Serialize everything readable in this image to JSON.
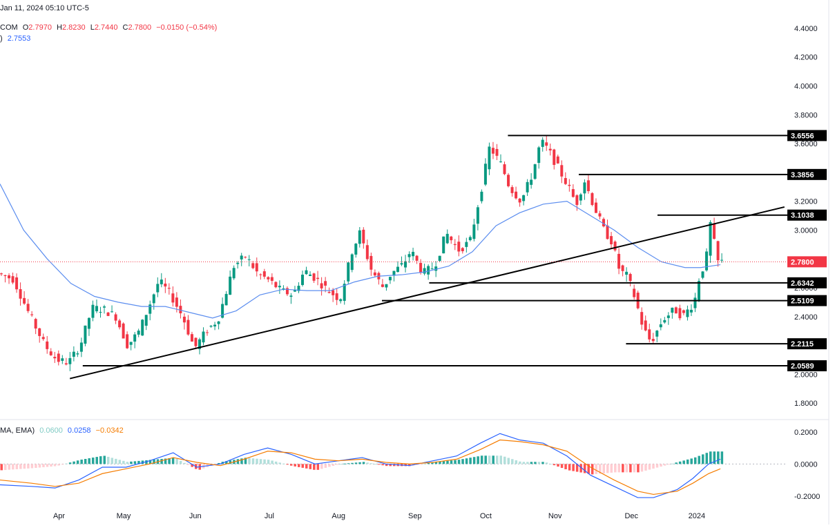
{
  "header": {
    "date_line": "Jan 11, 2024 05:10 UTC-5",
    "symbol": "COM",
    "open_label": "O",
    "open": "2.7970",
    "high_label": "H",
    "high": "2.8230",
    "low_label": "L",
    "low": "2.7440",
    "close_label": "C",
    "close": "2.7800",
    "change": "−0.0150 (−0.54%)",
    "ma_prefix": ")",
    "ma_value": "2.7553"
  },
  "macd_header": {
    "label": "MA, EMA)",
    "hist": "0.0600",
    "macd": "0.0258",
    "signal": "−0.0342"
  },
  "colors": {
    "up": "#089981",
    "down": "#f23645",
    "ma": "#5b8def",
    "macd": "#2962ff",
    "signal": "#f57c00",
    "hist_up_strong": "#26a69a",
    "hist_up_weak": "#b2dfdb",
    "hist_dn_strong": "#ff5252",
    "hist_dn_weak": "#ffcdd2",
    "level_box": "#000000",
    "price_box": "#f23645"
  },
  "chart_data": {
    "type": "candlestick",
    "price_axis": {
      "min": 1.7,
      "max": 4.5,
      "ticks": [
        "4.4000",
        "4.2000",
        "4.0000",
        "3.8000",
        "3.6000",
        "3.4000",
        "3.2000",
        "3.0000",
        "2.8000",
        "2.6000",
        "2.4000",
        "2.2000",
        "2.0000",
        "1.8000"
      ]
    },
    "macd_axis": {
      "min": -0.27,
      "max": 0.26,
      "ticks": [
        "0.2000",
        "0.0000",
        "-0.2000"
      ]
    },
    "months": [
      "Apr",
      "May",
      "Jun",
      "Jul",
      "Aug",
      "Sep",
      "Oct",
      "Nov",
      "Dec",
      "2024"
    ],
    "levels": [
      {
        "label": "3.6556",
        "value": 3.6556,
        "from": 0.61
      },
      {
        "label": "3.3856",
        "value": 3.3856,
        "from": 0.7
      },
      {
        "label": "3.1038",
        "value": 3.1038,
        "from": 0.8
      },
      {
        "label": "2.6342",
        "value": 2.6342,
        "from": 0.51
      },
      {
        "label": "2.5109",
        "value": 2.5109,
        "from": 0.45
      },
      {
        "label": "2.2115",
        "value": 2.2115,
        "from": 0.76
      },
      {
        "label": "2.0589",
        "value": 2.0589,
        "from": 0.07
      }
    ],
    "last_price": {
      "label": "2.7800",
      "value": 2.78
    },
    "trendline": {
      "start": [
        0.08,
        1.97
      ],
      "end": [
        0.97,
        3.16
      ]
    },
    "price_path": [
      [
        0.0,
        2.7
      ],
      [
        0.02,
        2.66
      ],
      [
        0.04,
        2.42
      ],
      [
        0.06,
        2.2
      ],
      [
        0.075,
        2.1
      ],
      [
        0.09,
        2.08
      ],
      [
        0.105,
        2.2
      ],
      [
        0.12,
        2.46
      ],
      [
        0.135,
        2.45
      ],
      [
        0.15,
        2.4
      ],
      [
        0.165,
        2.2
      ],
      [
        0.18,
        2.3
      ],
      [
        0.19,
        2.44
      ],
      [
        0.205,
        2.65
      ],
      [
        0.22,
        2.55
      ],
      [
        0.235,
        2.4
      ],
      [
        0.25,
        2.18
      ],
      [
        0.265,
        2.3
      ],
      [
        0.28,
        2.38
      ],
      [
        0.3,
        2.75
      ],
      [
        0.315,
        2.82
      ],
      [
        0.33,
        2.7
      ],
      [
        0.345,
        2.65
      ],
      [
        0.36,
        2.58
      ],
      [
        0.375,
        2.55
      ],
      [
        0.39,
        2.72
      ],
      [
        0.405,
        2.66
      ],
      [
        0.42,
        2.58
      ],
      [
        0.435,
        2.52
      ],
      [
        0.45,
        2.85
      ],
      [
        0.46,
        2.98
      ],
      [
        0.475,
        2.72
      ],
      [
        0.49,
        2.6
      ],
      [
        0.5,
        2.7
      ],
      [
        0.515,
        2.76
      ],
      [
        0.525,
        2.86
      ],
      [
        0.54,
        2.7
      ],
      [
        0.555,
        2.75
      ],
      [
        0.57,
        2.98
      ],
      [
        0.585,
        2.86
      ],
      [
        0.6,
        2.92
      ],
      [
        0.615,
        3.3
      ],
      [
        0.625,
        3.58
      ],
      [
        0.64,
        3.45
      ],
      [
        0.65,
        3.3
      ],
      [
        0.665,
        3.2
      ],
      [
        0.68,
        3.4
      ],
      [
        0.69,
        3.62
      ],
      [
        0.7,
        3.55
      ],
      [
        0.715,
        3.4
      ],
      [
        0.725,
        3.3
      ],
      [
        0.735,
        3.18
      ],
      [
        0.745,
        3.35
      ],
      [
        0.755,
        3.2
      ],
      [
        0.77,
        3.0
      ],
      [
        0.78,
        2.92
      ],
      [
        0.79,
        2.72
      ],
      [
        0.8,
        2.68
      ],
      [
        0.81,
        2.52
      ],
      [
        0.82,
        2.32
      ],
      [
        0.83,
        2.22
      ],
      [
        0.845,
        2.38
      ],
      [
        0.86,
        2.45
      ],
      [
        0.87,
        2.4
      ],
      [
        0.885,
        2.5
      ],
      [
        0.89,
        2.65
      ],
      [
        0.9,
        2.8
      ],
      [
        0.905,
        3.05
      ],
      [
        0.915,
        2.78
      ]
    ],
    "ma_path": [
      [
        0.0,
        3.32
      ],
      [
        0.03,
        3.0
      ],
      [
        0.06,
        2.8
      ],
      [
        0.09,
        2.63
      ],
      [
        0.12,
        2.54
      ],
      [
        0.15,
        2.5
      ],
      [
        0.18,
        2.47
      ],
      [
        0.21,
        2.47
      ],
      [
        0.24,
        2.43
      ],
      [
        0.27,
        2.39
      ],
      [
        0.3,
        2.44
      ],
      [
        0.33,
        2.55
      ],
      [
        0.36,
        2.59
      ],
      [
        0.39,
        2.58
      ],
      [
        0.42,
        2.58
      ],
      [
        0.45,
        2.64
      ],
      [
        0.48,
        2.68
      ],
      [
        0.51,
        2.69
      ],
      [
        0.54,
        2.71
      ],
      [
        0.57,
        2.75
      ],
      [
        0.6,
        2.85
      ],
      [
        0.63,
        3.03
      ],
      [
        0.66,
        3.12
      ],
      [
        0.69,
        3.18
      ],
      [
        0.72,
        3.2
      ],
      [
        0.75,
        3.1
      ],
      [
        0.78,
        3.0
      ],
      [
        0.81,
        2.88
      ],
      [
        0.84,
        2.78
      ],
      [
        0.87,
        2.74
      ],
      [
        0.89,
        2.74
      ],
      [
        0.915,
        2.76
      ]
    ],
    "macd_path": [
      [
        0.0,
        -0.13
      ],
      [
        0.04,
        -0.14
      ],
      [
        0.07,
        -0.15
      ],
      [
        0.1,
        -0.1
      ],
      [
        0.13,
        -0.02
      ],
      [
        0.16,
        -0.02
      ],
      [
        0.19,
        0.02
      ],
      [
        0.22,
        0.07
      ],
      [
        0.25,
        -0.02
      ],
      [
        0.28,
        0.0
      ],
      [
        0.31,
        0.06
      ],
      [
        0.34,
        0.1
      ],
      [
        0.37,
        0.06
      ],
      [
        0.4,
        0.0
      ],
      [
        0.43,
        0.02
      ],
      [
        0.46,
        0.04
      ],
      [
        0.49,
        0.0
      ],
      [
        0.52,
        -0.01
      ],
      [
        0.55,
        0.02
      ],
      [
        0.58,
        0.05
      ],
      [
        0.61,
        0.13
      ],
      [
        0.635,
        0.19
      ],
      [
        0.66,
        0.15
      ],
      [
        0.69,
        0.13
      ],
      [
        0.72,
        0.05
      ],
      [
        0.75,
        -0.07
      ],
      [
        0.78,
        -0.14
      ],
      [
        0.81,
        -0.21
      ],
      [
        0.83,
        -0.21
      ],
      [
        0.86,
        -0.16
      ],
      [
        0.88,
        -0.09
      ],
      [
        0.9,
        0.0
      ],
      [
        0.915,
        0.03
      ]
    ],
    "signal_path": [
      [
        0.0,
        -0.1
      ],
      [
        0.04,
        -0.12
      ],
      [
        0.07,
        -0.14
      ],
      [
        0.1,
        -0.12
      ],
      [
        0.13,
        -0.06
      ],
      [
        0.16,
        -0.03
      ],
      [
        0.19,
        0.0
      ],
      [
        0.22,
        0.04
      ],
      [
        0.25,
        0.01
      ],
      [
        0.28,
        -0.01
      ],
      [
        0.31,
        0.03
      ],
      [
        0.34,
        0.08
      ],
      [
        0.37,
        0.07
      ],
      [
        0.4,
        0.03
      ],
      [
        0.43,
        0.02
      ],
      [
        0.46,
        0.03
      ],
      [
        0.49,
        0.01
      ],
      [
        0.52,
        0.0
      ],
      [
        0.55,
        0.01
      ],
      [
        0.58,
        0.03
      ],
      [
        0.61,
        0.09
      ],
      [
        0.635,
        0.15
      ],
      [
        0.66,
        0.14
      ],
      [
        0.69,
        0.12
      ],
      [
        0.72,
        0.08
      ],
      [
        0.75,
        -0.02
      ],
      [
        0.78,
        -0.1
      ],
      [
        0.81,
        -0.17
      ],
      [
        0.83,
        -0.19
      ],
      [
        0.86,
        -0.17
      ],
      [
        0.88,
        -0.12
      ],
      [
        0.9,
        -0.06
      ],
      [
        0.915,
        -0.03
      ]
    ]
  }
}
